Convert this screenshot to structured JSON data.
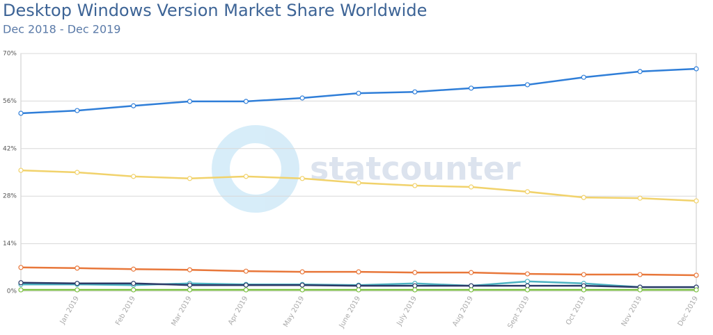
{
  "chart_data": {
    "type": "line",
    "title": "Desktop Windows Version Market Share Worldwide",
    "subtitle": "Dec 2018 - Dec 2019",
    "watermark": "statcounter",
    "categories": [
      null,
      "Jan 2019",
      "Feb 2019",
      "Mar 2019",
      "Apr 2019",
      "May 2019",
      "June 2019",
      "July 2019",
      "Aug 2019",
      "Sept 2019",
      "Oct 2019",
      "Nov 2019",
      "Dec 2019"
    ],
    "ylim": [
      0,
      70
    ],
    "yticks": [
      {
        "value": 0,
        "label": "0%"
      },
      {
        "value": 14,
        "label": "14%"
      },
      {
        "value": 28,
        "label": "28%"
      },
      {
        "value": 42,
        "label": "42%"
      },
      {
        "value": 56,
        "label": "56%"
      },
      {
        "value": 70,
        "label": "70%"
      }
    ],
    "grid": true,
    "series": [
      {
        "color": "#2f7ed8",
        "values": [
          52.4,
          53.2,
          54.6,
          55.9,
          55.9,
          56.9,
          58.3,
          58.7,
          59.8,
          60.8,
          63.0,
          64.7,
          65.5
        ]
      },
      {
        "color": "#f1d26b",
        "values": [
          35.6,
          35.0,
          33.8,
          33.2,
          33.8,
          33.2,
          31.9,
          31.1,
          30.7,
          29.3,
          27.6,
          27.4,
          26.6
        ]
      },
      {
        "color": "#e8773a",
        "values": [
          7.0,
          6.8,
          6.5,
          6.3,
          5.9,
          5.7,
          5.7,
          5.5,
          5.5,
          5.1,
          4.9,
          4.9,
          4.7
        ]
      },
      {
        "color": "#4cb3c2",
        "values": [
          2.0,
          2.0,
          1.8,
          2.3,
          2.0,
          2.0,
          1.8,
          2.3,
          1.6,
          2.9,
          2.3,
          1.2,
          1.2
        ]
      },
      {
        "color": "#2b3a67",
        "values": [
          2.5,
          2.3,
          2.3,
          1.8,
          1.8,
          1.8,
          1.6,
          1.6,
          1.6,
          1.6,
          1.6,
          1.2,
          1.2
        ]
      },
      {
        "color": "#7dc243",
        "values": [
          0.4,
          0.4,
          0.4,
          0.4,
          0.4,
          0.4,
          0.4,
          0.4,
          0.4,
          0.4,
          0.4,
          0.4,
          0.4
        ]
      }
    ]
  }
}
